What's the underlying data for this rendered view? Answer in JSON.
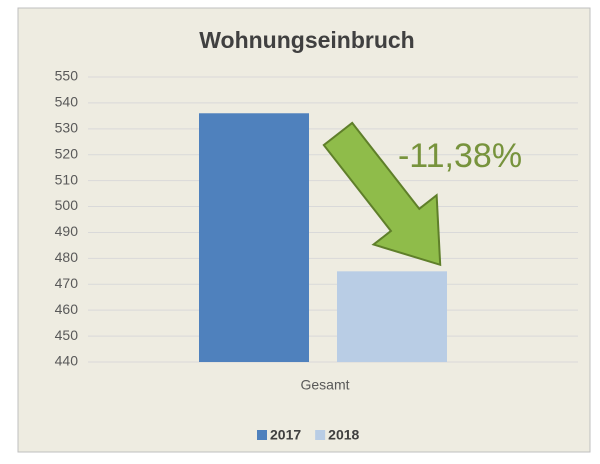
{
  "chart_data": {
    "type": "bar",
    "title": "Wohnungseinbruch",
    "categories": [
      "Gesamt"
    ],
    "series": [
      {
        "name": "2017",
        "color": "#4f81bd",
        "values": [
          536
        ]
      },
      {
        "name": "2018",
        "color": "#b9cde5",
        "values": [
          475
        ]
      }
    ],
    "ylim": [
      440,
      550
    ],
    "yticks": [
      440,
      450,
      460,
      470,
      480,
      490,
      500,
      510,
      520,
      530,
      540,
      550
    ],
    "grid": true,
    "legend": "bottom",
    "annotations": [
      {
        "text": "-11,38%",
        "color": "#77933c"
      }
    ]
  }
}
